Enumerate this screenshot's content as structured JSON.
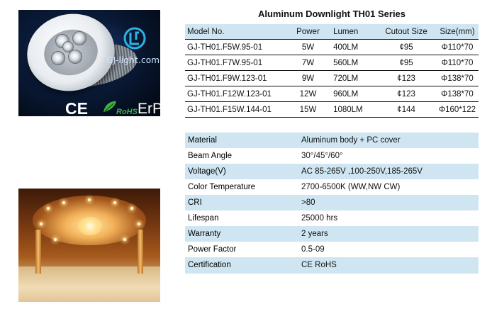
{
  "product_image": {
    "logo_text": "GJ-light.com",
    "ce_label": "CE",
    "rohs_label": "RoHS",
    "erp_label": "ErP"
  },
  "spec_table": {
    "title": "Aluminum Downlight TH01 Series",
    "headers": [
      "Model No.",
      "Power",
      "Lumen",
      "Cutout Size",
      "Size(mm)"
    ],
    "rows": [
      [
        "GJ-TH01.F5W.95-01",
        "5W",
        "400LM",
        "¢95",
        "Φ110*70"
      ],
      [
        "GJ-TH01.F7W.95-01",
        "7W",
        "560LM",
        "¢95",
        "Φ110*70"
      ],
      [
        "GJ-TH01.F9W.123-01",
        "9W",
        "720LM",
        "¢123",
        "Φ138*70"
      ],
      [
        "GJ-TH01.F12W.123-01",
        "12W",
        "960LM",
        "¢123",
        "Φ138*70"
      ],
      [
        "GJ-TH01.F15W.144-01",
        "15W",
        "1080LM",
        "¢144",
        "Φ160*122"
      ]
    ]
  },
  "properties": [
    {
      "label": "Material",
      "value": "Aluminum body + PC cover"
    },
    {
      "label": "Beam Angle",
      "value": "30°/45°/60°"
    },
    {
      "label": "Voltage(V)",
      "value": "AC 85-265V ,100-250V,185-265V"
    },
    {
      "label": "Color Temperature",
      "value": "2700-6500K (WW,NW CW)"
    },
    {
      "label": "CRI",
      "value": ">80"
    },
    {
      "label": "Lifespan",
      "value": "25000 hrs"
    },
    {
      "label": "Warranty",
      "value": "2 years"
    },
    {
      "label": "Power Factor",
      "value": "0.5-09"
    },
    {
      "label": "Certification",
      "value": "CE RoHS"
    }
  ],
  "colors": {
    "header_band": "#cfe6f2",
    "rule": "#111111"
  }
}
